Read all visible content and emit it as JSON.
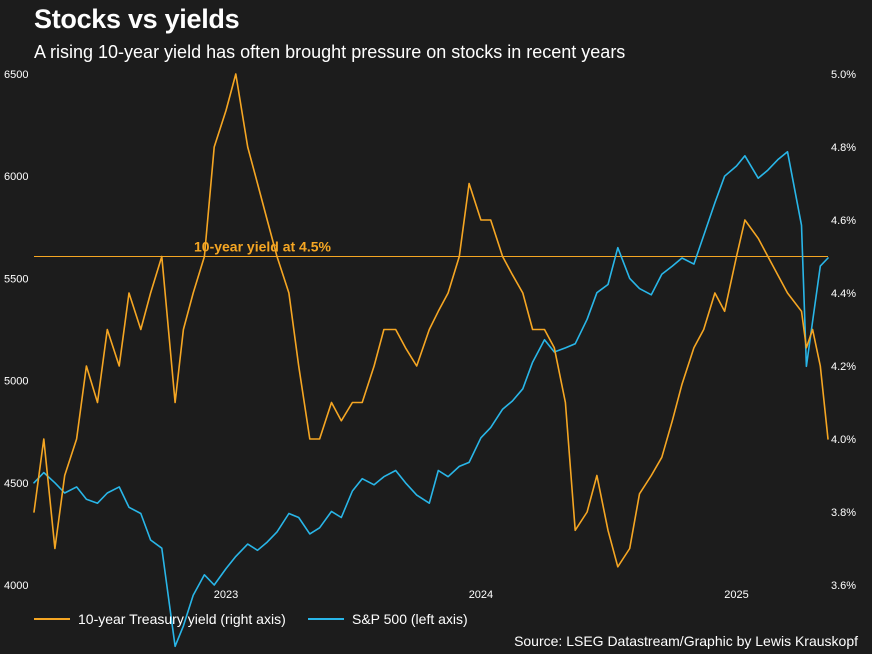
{
  "header": {
    "title": "Stocks vs yields",
    "subtitle": "A rising 10-year yield has often brought pressure on stocks in recent years"
  },
  "source": "Source: LSEG Datastream/Graphic by Lewis Krauskopf",
  "colors": {
    "background": "#1c1c1c",
    "yield": "#f5a623",
    "sp500": "#29b6e8",
    "text": "#ffffff"
  },
  "chart_data": {
    "type": "line",
    "title": "Stocks vs yields",
    "x_ticks": [
      "2023",
      "2024",
      "2025"
    ],
    "x_range": [
      "2022-04-01",
      "2025-05-12"
    ],
    "left_axis": {
      "series": "S&P 500",
      "ticks": [
        "6500",
        "6000",
        "5500",
        "5000",
        "4500",
        "4000"
      ],
      "range": [
        4000,
        6500
      ]
    },
    "right_axis": {
      "series": "10-year Treasury yield",
      "ticks": [
        "5.0%",
        "4.8%",
        "4.6%",
        "4.4%",
        "4.2%",
        "4.0%",
        "3.8%",
        "3.6%"
      ],
      "range": [
        3.6,
        5.0
      ]
    },
    "reference_line": {
      "axis": "right",
      "value": 4.5,
      "label": "10-year yield at 4.5%"
    },
    "legend": [
      "10-year Treasury yield (right axis)",
      "S&P 500 (left axis)"
    ],
    "series": [
      {
        "name": "10-year Treasury yield",
        "axis": "right",
        "color": "#f5a623",
        "x": [
          "2022-04-01",
          "2022-04-15",
          "2022-05-01",
          "2022-05-15",
          "2022-06-01",
          "2022-06-15",
          "2022-07-01",
          "2022-07-15",
          "2022-08-01",
          "2022-08-15",
          "2022-09-01",
          "2022-09-15",
          "2022-10-01",
          "2022-10-20",
          "2022-11-01",
          "2022-11-15",
          "2022-12-01",
          "2022-12-15",
          "2023-01-01",
          "2023-01-15",
          "2023-02-01",
          "2023-02-15",
          "2023-03-01",
          "2023-03-15",
          "2023-04-01",
          "2023-04-15",
          "2023-05-01",
          "2023-05-15",
          "2023-06-01",
          "2023-06-15",
          "2023-07-01",
          "2023-07-15",
          "2023-08-01",
          "2023-08-15",
          "2023-09-01",
          "2023-09-15",
          "2023-10-01",
          "2023-10-19",
          "2023-11-01",
          "2023-11-15",
          "2023-12-01",
          "2023-12-15",
          "2024-01-01",
          "2024-01-15",
          "2024-02-01",
          "2024-02-15",
          "2024-03-01",
          "2024-03-15",
          "2024-04-01",
          "2024-04-15",
          "2024-05-01",
          "2024-05-15",
          "2024-06-01",
          "2024-06-15",
          "2024-07-01",
          "2024-07-15",
          "2024-08-01",
          "2024-08-15",
          "2024-09-01",
          "2024-09-16",
          "2024-10-01",
          "2024-10-15",
          "2024-11-01",
          "2024-11-15",
          "2024-12-01",
          "2024-12-15",
          "2025-01-01",
          "2025-01-13",
          "2025-02-01",
          "2025-02-15",
          "2025-03-01",
          "2025-03-15",
          "2025-04-04",
          "2025-04-11",
          "2025-04-20",
          "2025-05-01",
          "2025-05-12"
        ],
        "values": [
          3.8,
          4.0,
          3.7,
          3.9,
          4.0,
          4.2,
          4.1,
          4.3,
          4.2,
          4.4,
          4.3,
          4.4,
          4.5,
          4.1,
          4.3,
          4.4,
          4.5,
          4.8,
          4.9,
          5.0,
          4.8,
          4.7,
          4.6,
          4.5,
          4.4,
          4.2,
          4.0,
          4.0,
          4.1,
          4.05,
          4.1,
          4.1,
          4.2,
          4.3,
          4.3,
          4.25,
          4.2,
          4.3,
          4.35,
          4.4,
          4.5,
          4.7,
          4.6,
          4.6,
          4.5,
          4.45,
          4.4,
          4.3,
          4.3,
          4.25,
          4.1,
          3.75,
          3.8,
          3.9,
          3.75,
          3.65,
          3.7,
          3.85,
          3.9,
          3.95,
          4.05,
          4.15,
          4.25,
          4.3,
          4.4,
          4.35,
          4.5,
          4.6,
          4.55,
          4.5,
          4.45,
          4.4,
          4.35,
          4.25,
          4.3,
          4.2,
          4.0
        ]
      },
      {
        "name": "S&P 500",
        "axis": "left",
        "color": "#29b6e8",
        "x": [
          "2022-04-01",
          "2022-04-15",
          "2022-05-01",
          "2022-05-15",
          "2022-06-01",
          "2022-06-15",
          "2022-07-01",
          "2022-07-15",
          "2022-08-01",
          "2022-08-15",
          "2022-09-01",
          "2022-09-15",
          "2022-10-01",
          "2022-10-20",
          "2022-11-01",
          "2022-11-15",
          "2022-12-01",
          "2022-12-15",
          "2023-01-01",
          "2023-01-15",
          "2023-02-01",
          "2023-02-15",
          "2023-03-01",
          "2023-03-15",
          "2023-04-01",
          "2023-04-15",
          "2023-05-01",
          "2023-05-15",
          "2023-06-01",
          "2023-06-15",
          "2023-07-01",
          "2023-07-15",
          "2023-08-01",
          "2023-08-15",
          "2023-09-01",
          "2023-09-15",
          "2023-10-01",
          "2023-10-19",
          "2023-11-01",
          "2023-11-15",
          "2023-12-01",
          "2023-12-15",
          "2024-01-01",
          "2024-01-15",
          "2024-02-01",
          "2024-02-15",
          "2024-03-01",
          "2024-03-15",
          "2024-04-01",
          "2024-04-15",
          "2024-05-01",
          "2024-05-15",
          "2024-06-01",
          "2024-06-15",
          "2024-07-01",
          "2024-07-15",
          "2024-08-01",
          "2024-08-15",
          "2024-09-01",
          "2024-09-16",
          "2024-10-01",
          "2024-10-15",
          "2024-11-01",
          "2024-11-15",
          "2024-12-01",
          "2024-12-15",
          "2025-01-01",
          "2025-01-13",
          "2025-02-01",
          "2025-02-15",
          "2025-03-01",
          "2025-03-15",
          "2025-04-04",
          "2025-04-11",
          "2025-04-20",
          "2025-05-01",
          "2025-05-12"
        ],
        "values": [
          4500,
          4550,
          4500,
          4450,
          4480,
          4420,
          4400,
          4450,
          4480,
          4380,
          4350,
          4220,
          4180,
          3700,
          3800,
          3950,
          4050,
          4000,
          4080,
          4140,
          4200,
          4170,
          4210,
          4260,
          4350,
          4330,
          4250,
          4280,
          4360,
          4330,
          4460,
          4520,
          4490,
          4530,
          4560,
          4500,
          4440,
          4400,
          4560,
          4530,
          4580,
          4600,
          4720,
          4770,
          4860,
          4900,
          4960,
          5090,
          5200,
          5140,
          5160,
          5180,
          5300,
          5430,
          5470,
          5650,
          5500,
          5450,
          5420,
          5520,
          5560,
          5600,
          5570,
          5710,
          5870,
          6000,
          6050,
          6100,
          5990,
          6030,
          6080,
          6120,
          5760,
          5070,
          5290,
          5560,
          5600
        ]
      }
    ]
  }
}
